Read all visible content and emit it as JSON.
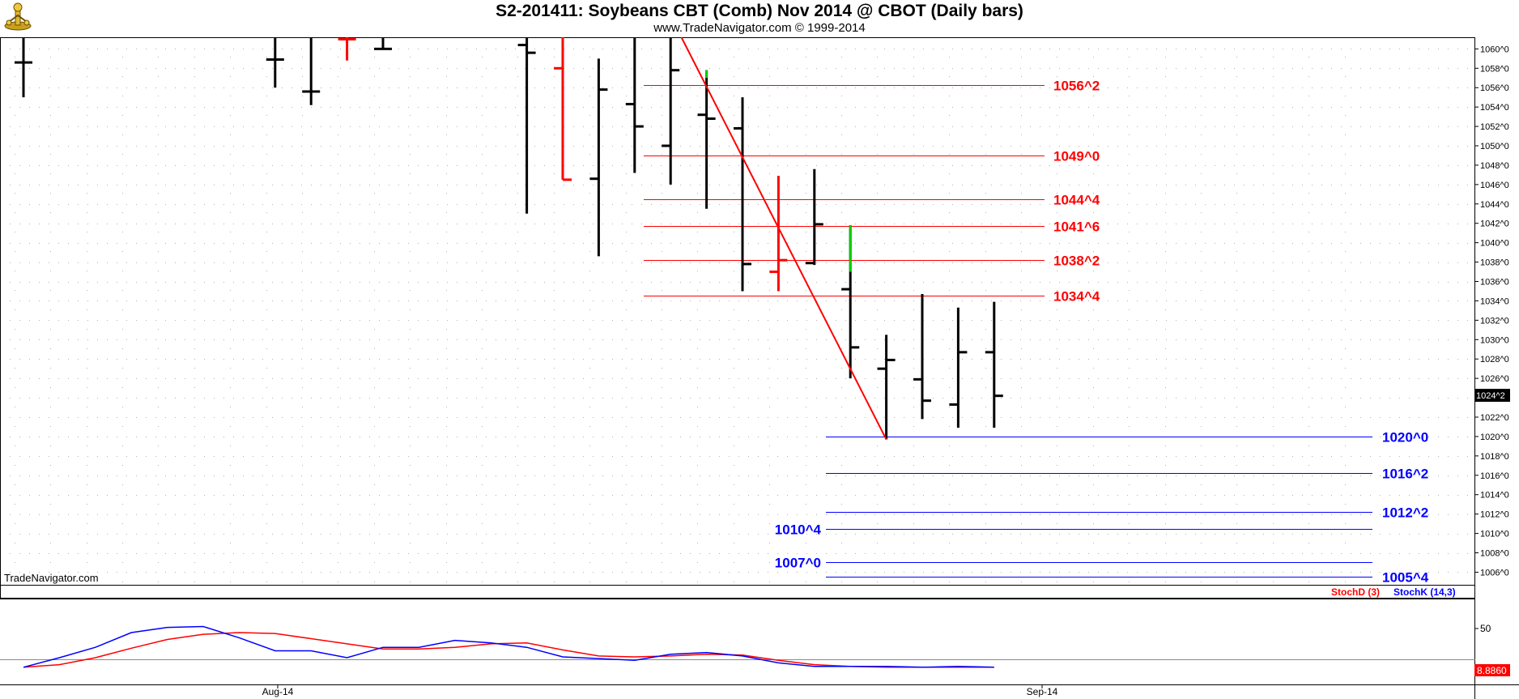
{
  "header": {
    "title": "S2-201411:  Soybeans CBT (Comb) Nov 2014 @ CBOT  (Daily bars)",
    "subtitle": "www.TradeNavigator.com © 1999-2014"
  },
  "watermark": "TradeNavigator.com",
  "colors": {
    "up_bar": "#000000",
    "down_bar": "#ff0000",
    "resistance": "#ff0000",
    "support": "#0000ff",
    "stoch_k": "#0000ff",
    "stoch_d": "#ff0000",
    "highlight": "#00cc00"
  },
  "chart_data": [
    {
      "type": "ohlc",
      "title": "S2-201411:  Soybeans CBT (Comb) Nov 2014 @ CBOT  (Daily bars)",
      "price_axis_labels": [
        "1060^0",
        "1058^0",
        "1056^0",
        "1054^0",
        "1052^0",
        "1050^0",
        "1048^0",
        "1046^0",
        "1044^0",
        "1042^0",
        "1040^0",
        "1038^0",
        "1036^0",
        "1034^0",
        "1032^0",
        "1030^0",
        "1028^0",
        "1026^0",
        "1024^0",
        "1022^0",
        "1020^0",
        "1018^0",
        "1016^0",
        "1014^0",
        "1012^0",
        "1010^0",
        "1008^0",
        "1006^0"
      ],
      "ylim": [
        1004.7,
        1061.2
      ],
      "last_price_label": "1024^2",
      "x_tick_labels": [
        "Aug-14",
        "Sep-14"
      ],
      "bars": [
        {
          "slot": 0,
          "o": 1058.6,
          "h": 1061.2,
          "l": 1055.0,
          "c": 1058.6,
          "color": "#000000"
        },
        {
          "slot": 7,
          "o": 1058.9,
          "h": 1061.2,
          "l": 1056.0,
          "c": 1058.9,
          "color": "#000000"
        },
        {
          "slot": 8,
          "o": 1055.6,
          "h": 1061.2,
          "l": 1054.2,
          "c": 1055.6,
          "color": "#000000"
        },
        {
          "slot": 9,
          "o": 1061.0,
          "h": 1061.2,
          "l": 1058.8,
          "c": 1061.0,
          "color": "#ff0000"
        },
        {
          "slot": 10,
          "o": 1060.0,
          "h": 1061.2,
          "l": 1060.0,
          "c": 1060.0,
          "color": "#000000"
        },
        {
          "slot": 14,
          "o": 1060.4,
          "h": 1061.2,
          "l": 1043.0,
          "c": 1059.6,
          "color": "#000000"
        },
        {
          "slot": 15,
          "o": 1058.0,
          "h": 1061.2,
          "l": 1046.5,
          "c": 1046.5,
          "color": "#ff0000"
        },
        {
          "slot": 16,
          "o": 1046.6,
          "h": 1059.0,
          "l": 1038.6,
          "c": 1055.8,
          "color": "#000000"
        },
        {
          "slot": 17,
          "o": 1054.3,
          "h": 1061.2,
          "l": 1047.2,
          "c": 1052.0,
          "color": "#000000"
        },
        {
          "slot": 18,
          "o": 1050.0,
          "h": 1061.2,
          "l": 1046.0,
          "c": 1057.8,
          "color": "#000000"
        },
        {
          "slot": 19,
          "o": 1053.2,
          "h": 1057.8,
          "l": 1043.5,
          "c": 1052.8,
          "color": "#000000"
        },
        {
          "slot": 20,
          "o": 1051.8,
          "h": 1055.0,
          "l": 1035.0,
          "c": 1037.8,
          "color": "#000000"
        },
        {
          "slot": 21,
          "o": 1037.0,
          "h": 1046.9,
          "l": 1035.0,
          "c": 1038.2,
          "color": "#ff0000"
        },
        {
          "slot": 22,
          "o": 1037.9,
          "h": 1047.6,
          "l": 1037.7,
          "c": 1041.9,
          "color": "#000000"
        },
        {
          "slot": 23,
          "o": 1035.2,
          "h": 1041.8,
          "l": 1026.0,
          "c": 1029.2,
          "color": "#000000"
        },
        {
          "slot": 24,
          "o": 1027.0,
          "h": 1030.5,
          "l": 1019.7,
          "c": 1027.9,
          "color": "#000000"
        },
        {
          "slot": 25,
          "o": 1025.9,
          "h": 1034.7,
          "l": 1021.8,
          "c": 1023.7,
          "color": "#000000"
        },
        {
          "slot": 26,
          "o": 1023.3,
          "h": 1033.3,
          "l": 1020.9,
          "c": 1028.7,
          "color": "#000000"
        },
        {
          "slot": 27,
          "o": 1028.7,
          "h": 1033.9,
          "l": 1020.9,
          "c": 1024.2,
          "color": "#000000"
        }
      ],
      "green_highlights": [
        {
          "slot": 19,
          "from": 1057.0,
          "to": 1057.8
        },
        {
          "slot": 23,
          "from": 1037.0,
          "to": 1041.8
        }
      ],
      "resistance_levels": [
        {
          "label": "1056^2",
          "value": 1056.25
        },
        {
          "label": "1049^0",
          "value": 1049.0
        },
        {
          "label": "1044^4",
          "value": 1044.5
        },
        {
          "label": "1041^6",
          "value": 1041.75
        },
        {
          "label": "1038^2",
          "value": 1038.25
        },
        {
          "label": "1034^4",
          "value": 1034.5
        }
      ],
      "support_levels": [
        {
          "label": "1020^0",
          "value": 1020.0,
          "label_side": "right"
        },
        {
          "label": "1016^2",
          "value": 1016.25,
          "label_side": "right"
        },
        {
          "label": "1012^2",
          "value": 1012.25,
          "label_side": "right"
        },
        {
          "label": "1010^4",
          "value": 1010.5,
          "label_side": "left"
        },
        {
          "label": "1007^0",
          "value": 1007.0,
          "label_side": "left"
        },
        {
          "label": "1005^4",
          "value": 1005.5,
          "label_side": "right"
        }
      ],
      "trendline": {
        "from": {
          "slot": 18.3,
          "price": 1061.2
        },
        "to": {
          "slot": 24,
          "price": 1019.7
        }
      }
    },
    {
      "type": "line",
      "series": [
        {
          "name": "StochD (3)",
          "color": "#ff0000",
          "values": [
            3,
            6,
            14,
            25,
            35,
            41,
            43,
            42,
            36,
            30,
            24,
            24,
            26,
            30,
            31,
            23,
            16,
            15,
            16,
            18,
            17,
            11,
            6,
            4,
            3,
            3,
            3,
            3
          ]
        },
        {
          "name": "StochK (14,3)",
          "color": "#0000ff",
          "values": [
            3,
            14,
            26,
            43,
            49,
            50,
            37,
            22,
            22,
            14,
            26,
            26,
            34,
            31,
            26,
            15,
            13,
            11,
            18,
            20,
            16,
            8,
            4,
            4,
            4,
            3,
            4,
            3
          ]
        }
      ],
      "ylim": [
        0,
        100
      ],
      "tick_labels": [
        "50"
      ],
      "value_label": "8.8860"
    }
  ]
}
